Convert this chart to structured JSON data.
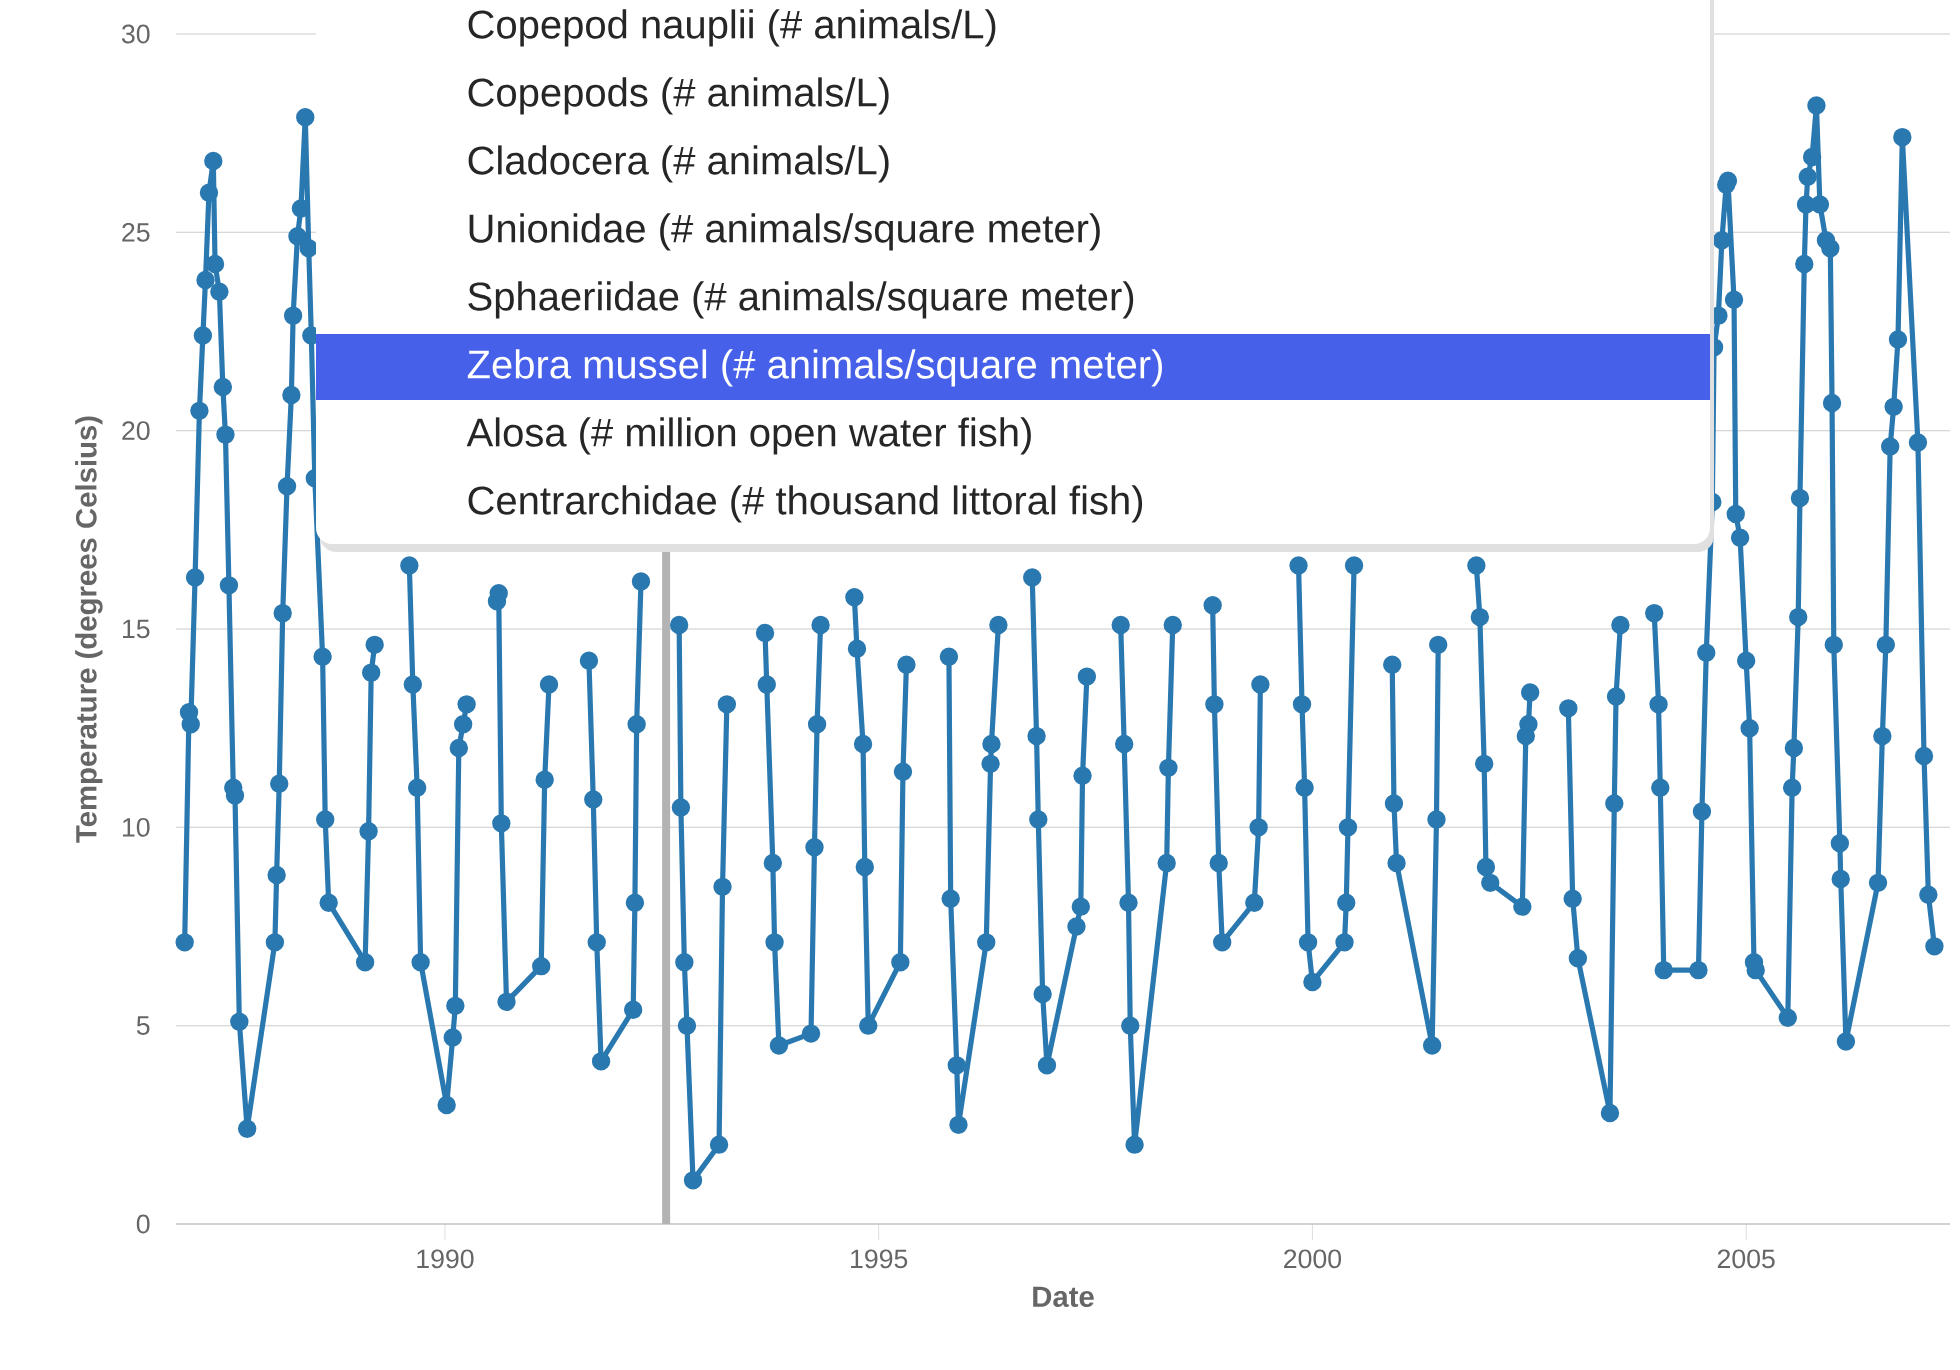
{
  "chart_data": {
    "type": "line",
    "xlabel": "Date",
    "ylabel": "Temperature (degrees Celsius)",
    "xlim": [
      1986.9,
      2007.35
    ],
    "ylim": [
      0,
      30
    ],
    "xticks": [
      1990,
      1995,
      2000,
      2005
    ],
    "yticks": [
      0,
      5,
      10,
      15,
      20,
      25,
      30
    ],
    "grid": "y",
    "marker": "circle",
    "line_style": "solid",
    "ref_lines": [
      {
        "axis": "x",
        "value": 1992.55,
        "color": "#b3b3b3"
      }
    ],
    "annotations": [
      "Copepod nauplii (# animals/L)",
      "Copepods (# animals/L)",
      "Cladocera (# animals/L)",
      "Unionidae (# animals/square meter)",
      "Sphaeriidae (# animals/square meter)",
      "Zebra mussel (# animals/square meter)",
      "Alosa (# million open water fish)",
      "Centrarchidae (# thousand littoral fish)"
    ],
    "series": [
      {
        "color": "#2a78b0",
        "x": [
          1987.0,
          1987.05,
          1987.07,
          1987.12,
          1987.17,
          1987.21,
          1987.24,
          1987.28,
          1987.33,
          1987.35,
          1987.4,
          1987.44,
          1987.47,
          1987.51,
          1987.56,
          1987.58,
          1987.63,
          1987.72,
          1988.04,
          1988.06,
          1988.09,
          1988.13,
          1988.18,
          1988.23,
          1988.25,
          1988.3,
          1988.34,
          1988.39,
          1988.43,
          1988.46,
          1988.5,
          1988.59,
          1988.62,
          1988.66,
          1989.08,
          1989.12,
          1989.15,
          1989.19,
          1989.4,
          1989.59,
          1989.63,
          1989.68,
          1989.72,
          1990.02,
          1990.09,
          1990.12,
          1990.16,
          1990.21,
          1990.25,
          1990.43,
          1990.6,
          1990.62,
          1990.65,
          1990.71,
          1991.11,
          1991.15,
          1991.2,
          1991.43,
          1991.66,
          1991.71,
          1991.75,
          1991.8,
          1992.17,
          1992.19,
          1992.21,
          1992.26,
          1992.48,
          1992.7,
          1992.72,
          1992.76,
          1992.79,
          1992.86,
          1993.16,
          1993.2,
          1993.25,
          1993.47,
          1993.69,
          1993.71,
          1993.78,
          1993.8,
          1993.85,
          1994.22,
          1994.26,
          1994.29,
          1994.33,
          1994.52,
          1994.72,
          1994.75,
          1994.82,
          1994.84,
          1994.88,
          1995.25,
          1995.28,
          1995.32,
          1995.56,
          1995.81,
          1995.83,
          1995.9,
          1995.92,
          1996.24,
          1996.29,
          1996.3,
          1996.38,
          1996.58,
          1996.77,
          1996.82,
          1996.84,
          1996.89,
          1996.94,
          1997.28,
          1997.33,
          1997.35,
          1997.4,
          1997.6,
          1997.79,
          1997.83,
          1997.88,
          1997.9,
          1997.95,
          1998.32,
          1998.34,
          1998.39,
          1998.62,
          1998.85,
          1998.87,
          1998.92,
          1998.96,
          1999.33,
          1999.38,
          1999.4,
          1999.62,
          1999.84,
          1999.88,
          1999.91,
          1999.95,
          2000.0,
          2000.37,
          2000.39,
          2000.41,
          2000.48,
          2000.7,
          2000.92,
          2000.94,
          2000.97,
          2001.38,
          2001.43,
          2001.45,
          2001.67,
          2001.89,
          2001.93,
          2001.98,
          2002.0,
          2002.05,
          2002.42,
          2002.46,
          2002.49,
          2002.51,
          2002.73,
          2002.95,
          2003.0,
          2003.06,
          2003.43,
          2003.48,
          2003.5,
          2003.55,
          2003.75,
          2003.94,
          2003.99,
          2004.01,
          2004.05,
          2004.45,
          2004.49,
          2004.54,
          2004.61,
          2004.63,
          2004.68,
          2004.72,
          2004.77,
          2004.79,
          2004.86,
          2004.88,
          2004.93,
          2005.0,
          2005.04,
          2005.09,
          2005.11,
          2005.48,
          2005.53,
          2005.55,
          2005.6,
          2005.62,
          2005.67,
          2005.69,
          2005.71,
          2005.76,
          2005.81,
          2005.85,
          2005.92,
          2005.97,
          2005.99,
          2006.01,
          2006.08,
          2006.09,
          2006.15,
          2006.52,
          2006.57,
          2006.61,
          2006.66,
          2006.7,
          2006.75,
          2006.8,
          2006.98,
          2007.05,
          2007.1,
          2007.17
        ],
        "values": [
          7.1,
          12.9,
          12.6,
          16.3,
          20.5,
          22.4,
          23.8,
          26.0,
          26.8,
          24.2,
          23.5,
          21.1,
          19.9,
          16.1,
          11.0,
          10.8,
          5.1,
          2.4,
          7.1,
          8.8,
          11.1,
          15.4,
          18.6,
          20.9,
          22.9,
          24.9,
          25.6,
          27.9,
          24.6,
          22.4,
          18.8,
          14.3,
          10.2,
          8.1,
          6.6,
          9.9,
          13.9,
          14.6,
          null,
          16.6,
          13.6,
          11.0,
          6.6,
          3.0,
          4.7,
          5.5,
          12.0,
          12.6,
          13.1,
          null,
          15.7,
          15.9,
          10.1,
          5.6,
          6.5,
          11.2,
          13.6,
          null,
          14.2,
          10.7,
          7.1,
          4.1,
          5.4,
          8.1,
          12.6,
          16.2,
          null,
          15.1,
          10.5,
          6.6,
          5.0,
          1.1,
          2.0,
          8.5,
          13.1,
          null,
          14.9,
          13.6,
          9.1,
          7.1,
          4.5,
          4.8,
          9.5,
          12.6,
          15.1,
          null,
          15.8,
          14.5,
          12.1,
          9.0,
          5.0,
          6.6,
          11.4,
          14.1,
          null,
          14.3,
          8.2,
          4.0,
          2.5,
          7.1,
          11.6,
          12.1,
          15.1,
          null,
          16.3,
          12.3,
          10.2,
          5.8,
          4.0,
          7.5,
          8.0,
          11.3,
          13.8,
          null,
          15.1,
          12.1,
          8.1,
          5.0,
          2.0,
          9.1,
          11.5,
          15.1,
          null,
          15.6,
          13.1,
          9.1,
          7.1,
          8.1,
          10.0,
          13.6,
          null,
          16.6,
          13.1,
          11.0,
          7.1,
          6.1,
          7.1,
          8.1,
          10.0,
          16.6,
          null,
          14.1,
          10.6,
          9.1,
          4.5,
          10.2,
          14.6,
          null,
          16.6,
          15.3,
          11.6,
          9.0,
          8.6,
          8.0,
          12.3,
          12.6,
          13.4,
          null,
          13.0,
          8.2,
          6.7,
          2.8,
          10.6,
          13.3,
          15.1,
          null,
          15.4,
          13.1,
          11.0,
          6.4,
          6.4,
          10.4,
          14.4,
          18.2,
          22.1,
          22.9,
          24.8,
          26.2,
          26.3,
          23.3,
          17.9,
          17.3,
          14.2,
          12.5,
          6.6,
          6.4,
          5.2,
          11.0,
          12.0,
          15.3,
          18.3,
          24.2,
          25.7,
          26.4,
          26.9,
          28.2,
          25.7,
          24.8,
          24.6,
          20.7,
          14.6,
          9.6,
          8.7,
          4.6,
          8.6,
          12.3,
          14.6,
          19.6,
          20.6,
          22.3,
          27.4,
          19.7,
          11.8,
          8.3,
          7.0
        ]
      }
    ]
  }
}
